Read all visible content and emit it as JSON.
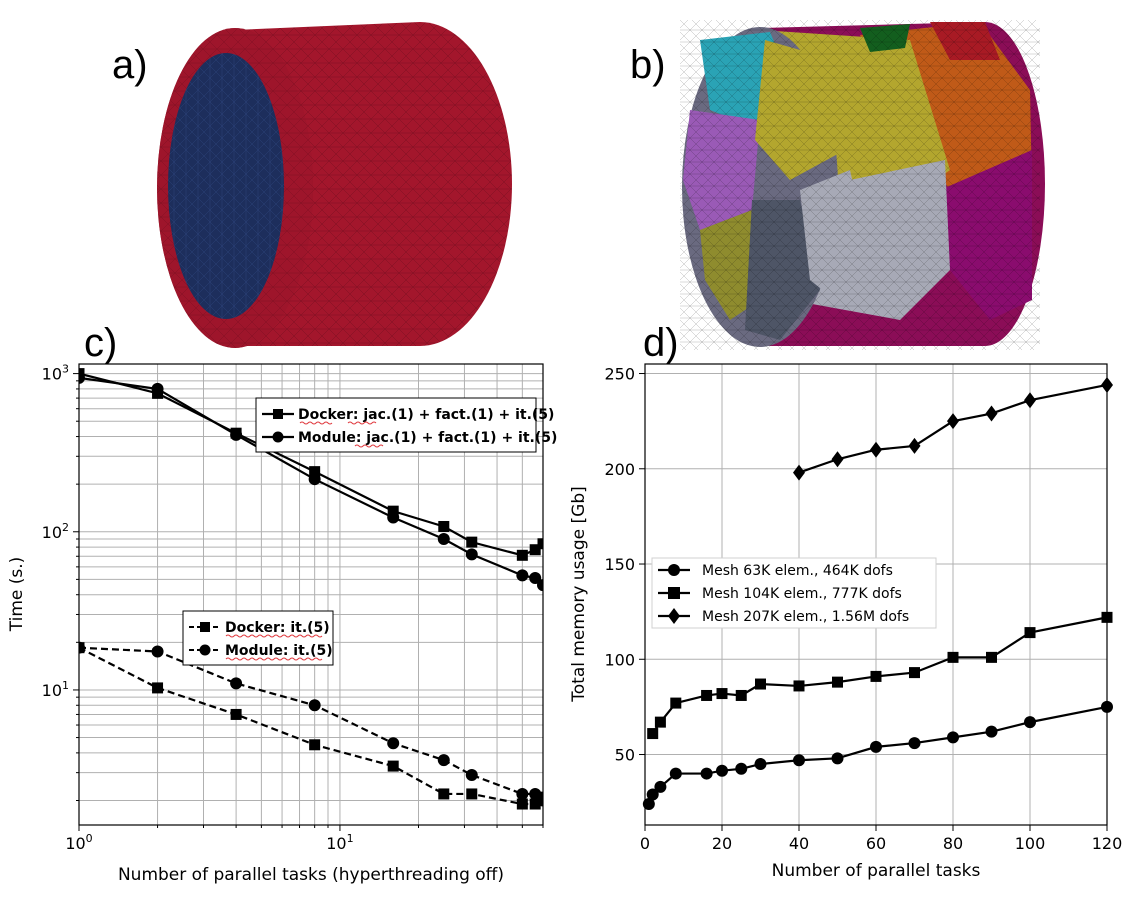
{
  "panels": {
    "a": "a)",
    "b": "b)",
    "c": "c)",
    "d": "d)"
  },
  "colors": {
    "cylinder_red": "#a3162c",
    "cylinder_blue": "#1d2e5c",
    "series": "#000000"
  },
  "chart_data": [
    {
      "type": "line",
      "panel": "c",
      "title": "",
      "xlabel": "Number of parallel tasks (hyperthreading off)",
      "ylabel": "Time (s.)",
      "xscale": "log",
      "yscale": "log",
      "xlim": [
        1,
        60
      ],
      "ylim": [
        1.4,
        1150
      ],
      "xticks": [
        {
          "v": 1,
          "b": "10",
          "e": "0"
        },
        {
          "v": 10,
          "b": "10",
          "e": "1"
        }
      ],
      "yticks": [
        {
          "v": 10,
          "b": "10",
          "e": "1"
        },
        {
          "v": 100,
          "b": "10",
          "e": "2"
        },
        {
          "v": 1000,
          "b": "10",
          "e": "3"
        }
      ],
      "grid": true,
      "legend_groups": [
        {
          "placement": "upper-right",
          "series": [
            0,
            1
          ]
        },
        {
          "placement": "center",
          "series": [
            2,
            3
          ]
        }
      ],
      "series": [
        {
          "name": "Docker: jac.(1) + fact.(1) + it.(5)",
          "marker": "square",
          "dash": "solid",
          "x": [
            1,
            2,
            4,
            8,
            16,
            25,
            32,
            50,
            56,
            60
          ],
          "y": [
            1000,
            750,
            420,
            240,
            135,
            108,
            86,
            71,
            77,
            84
          ]
        },
        {
          "name": "Module: jac.(1) + fact.(1) + it.(5)",
          "marker": "circle",
          "dash": "solid",
          "x": [
            1,
            2,
            4,
            8,
            16,
            25,
            32,
            50,
            56,
            60
          ],
          "y": [
            940,
            800,
            410,
            215,
            123,
            90,
            72,
            53,
            51,
            46
          ]
        },
        {
          "name": "Docker: it.(5)",
          "marker": "square",
          "dash": "dashed",
          "x": [
            1,
            2,
            4,
            8,
            16,
            25,
            32,
            50,
            56,
            60
          ],
          "y": [
            18.5,
            10.3,
            7.0,
            4.5,
            3.3,
            2.2,
            2.2,
            1.9,
            1.9,
            2.1
          ]
        },
        {
          "name": "Module: it.(5)",
          "marker": "circle",
          "dash": "dashed",
          "x": [
            1,
            2,
            4,
            8,
            16,
            25,
            32,
            50,
            56,
            60
          ],
          "y": [
            18.5,
            17.5,
            11.0,
            8.0,
            4.6,
            3.6,
            2.9,
            2.2,
            2.2,
            2.0
          ]
        }
      ]
    },
    {
      "type": "line",
      "panel": "d",
      "title": "",
      "xlabel": "Number of parallel tasks",
      "ylabel": "Total memory usage [Gb]",
      "xlim": [
        0,
        120
      ],
      "ylim": [
        13,
        255
      ],
      "xticks": [
        0,
        20,
        40,
        60,
        80,
        100,
        120
      ],
      "yticks": [
        50,
        100,
        150,
        200,
        250
      ],
      "grid": true,
      "legend": "center-left",
      "series": [
        {
          "name": "Mesh 63K elem., 464K dofs",
          "marker": "circle",
          "x": [
            1,
            2,
            4,
            8,
            16,
            20,
            25,
            30,
            40,
            50,
            60,
            70,
            80,
            90,
            100,
            120
          ],
          "y": [
            24,
            29,
            33,
            40,
            40,
            41.5,
            42.5,
            45,
            47,
            48,
            54,
            56,
            59,
            62,
            67,
            75
          ]
        },
        {
          "name": "Mesh 104K elem., 777K dofs",
          "marker": "square",
          "x": [
            2,
            4,
            8,
            16,
            20,
            25,
            30,
            40,
            50,
            60,
            70,
            80,
            90,
            100,
            120
          ],
          "y": [
            61,
            67,
            77,
            81,
            82,
            81,
            87,
            86,
            88,
            91,
            93,
            101,
            101,
            114,
            122
          ]
        },
        {
          "name": "Mesh 207K elem., 1.56M dofs",
          "marker": "diamond",
          "x": [
            40,
            50,
            60,
            70,
            80,
            90,
            100,
            120
          ],
          "y": [
            198,
            205,
            210,
            212,
            225,
            229,
            236,
            244
          ]
        }
      ]
    }
  ]
}
